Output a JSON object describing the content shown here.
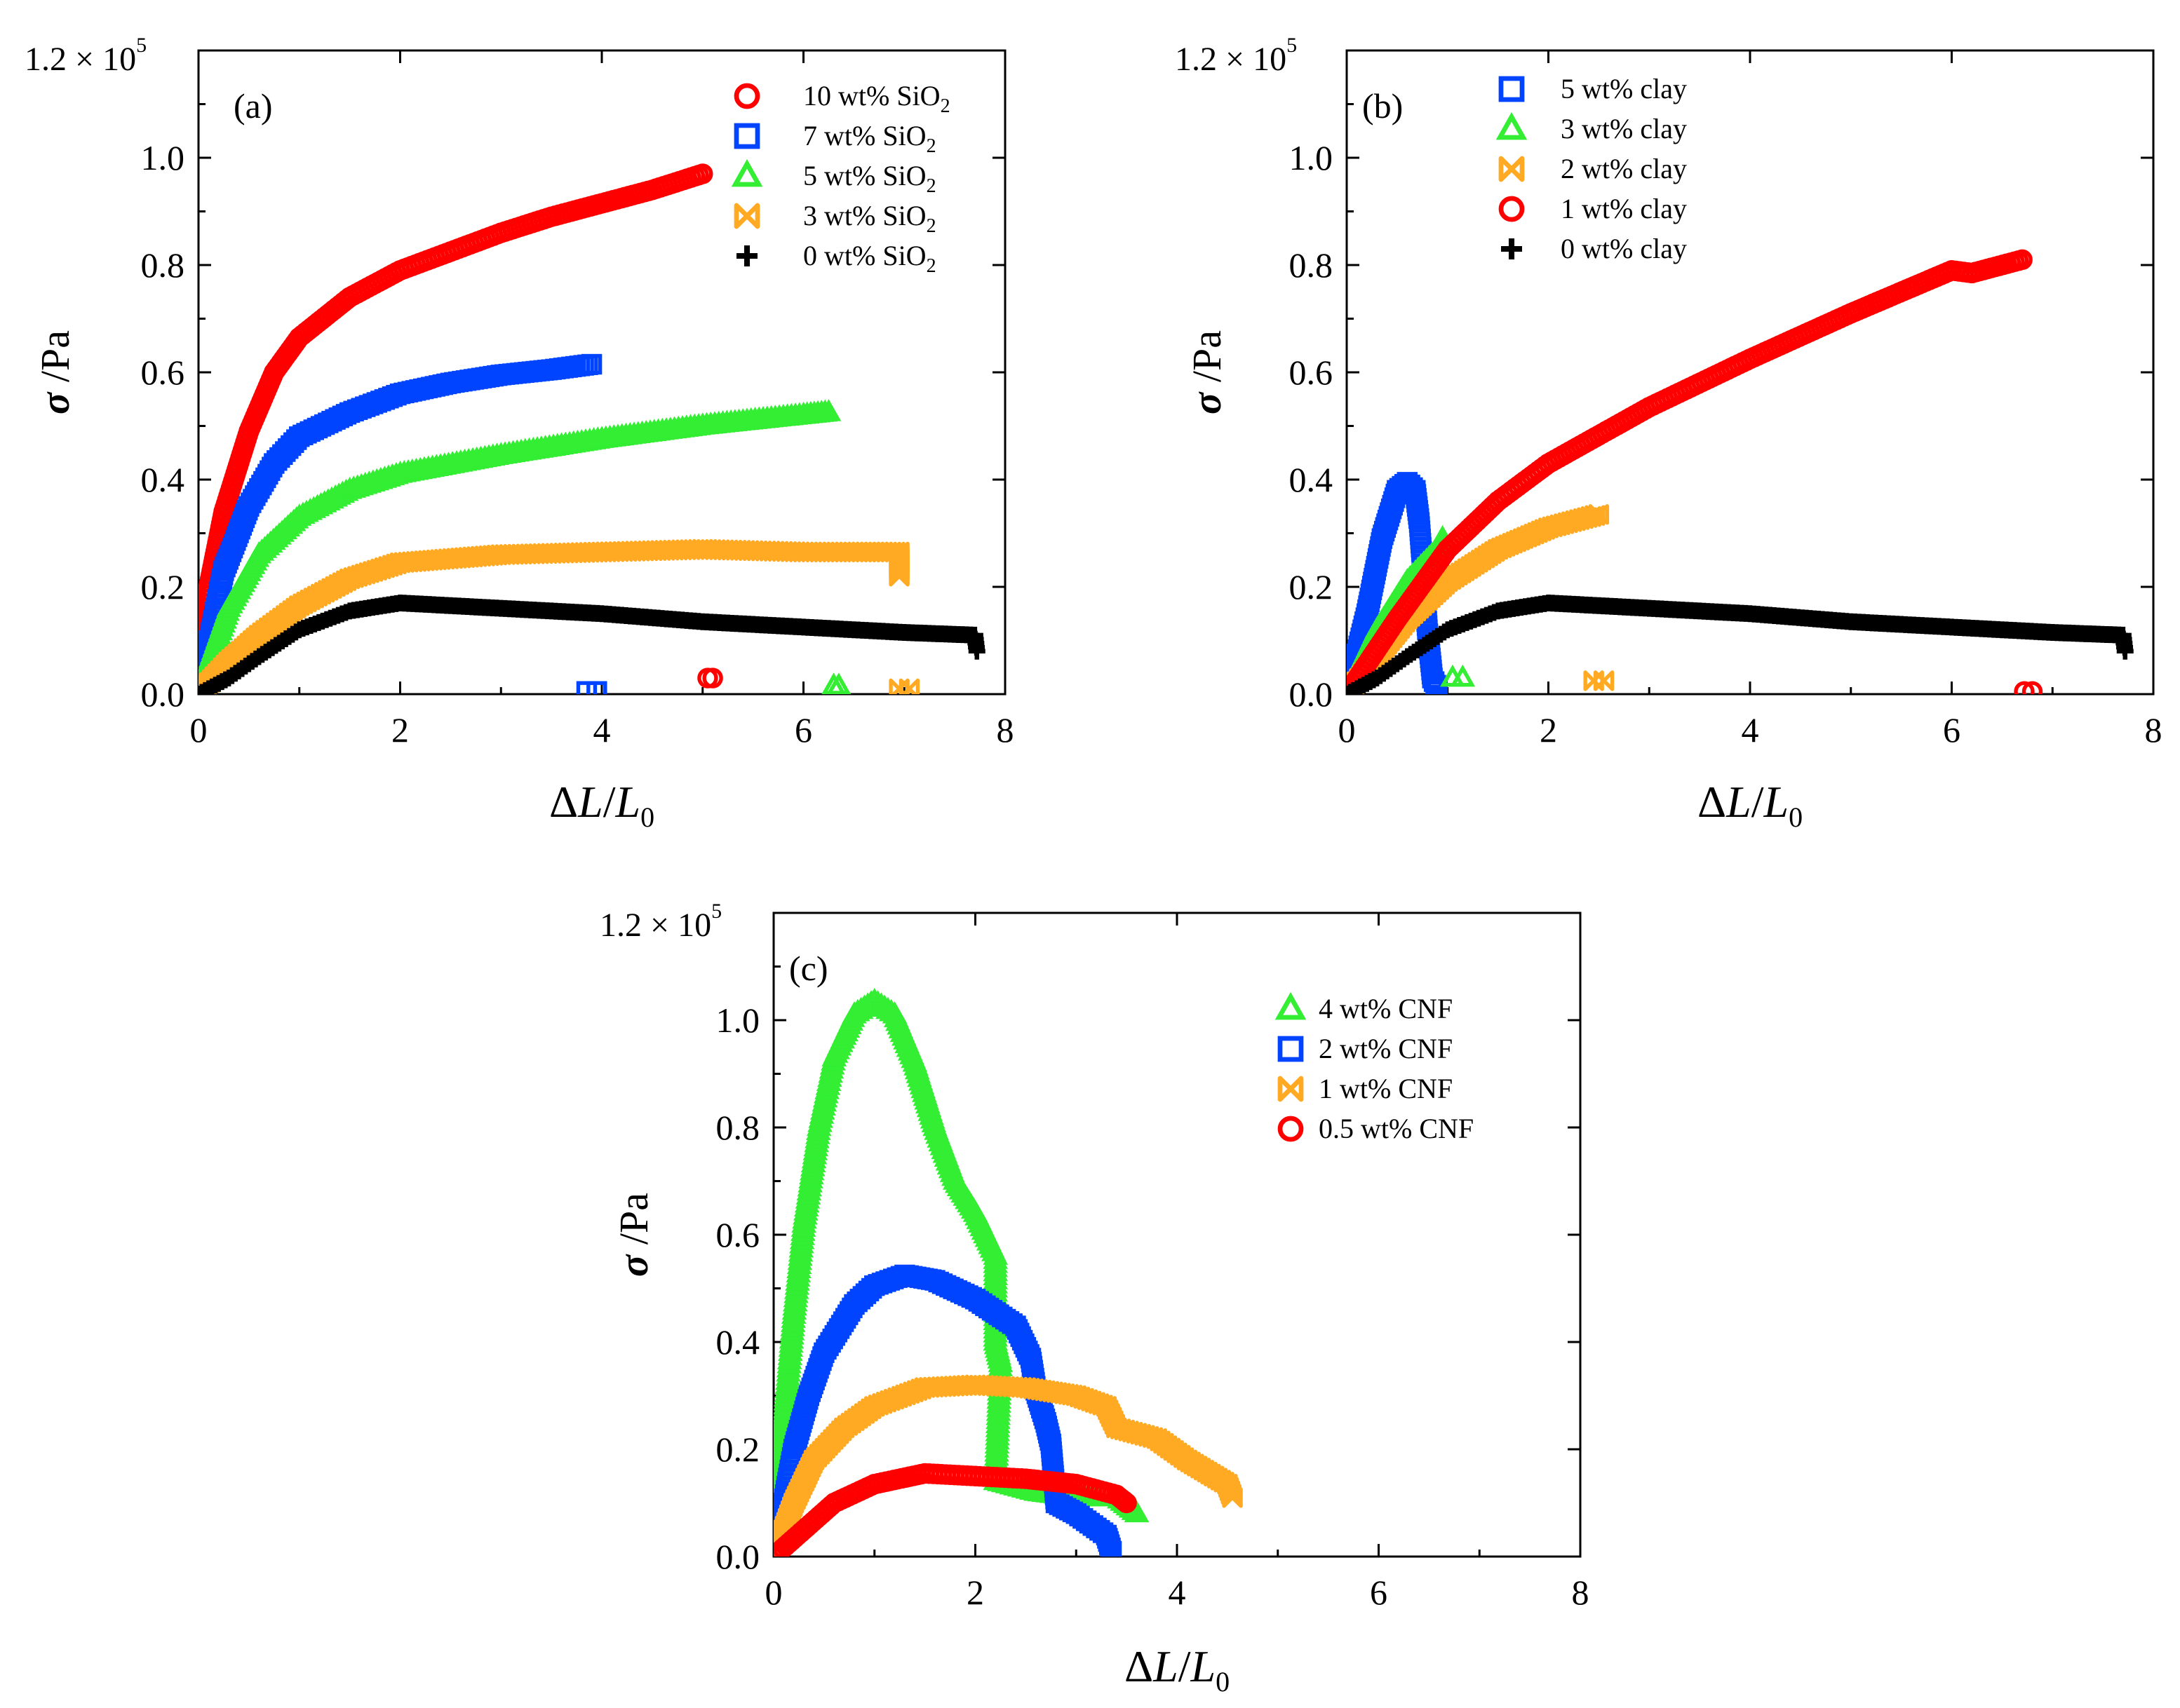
{
  "figure": {
    "panels": [
      {
        "tag": "(a)",
        "series_order": [
          "s10",
          "s7",
          "s5",
          "s3",
          "s0"
        ]
      },
      {
        "tag": "(b)",
        "series_order": [
          "c5",
          "c3",
          "c2",
          "c1",
          "c0"
        ]
      },
      {
        "tag": "(c)",
        "series_order": [
          "n4",
          "n2",
          "n1",
          "n05"
        ]
      }
    ]
  },
  "chart_data": [
    {
      "type": "scatter",
      "panel": "(a)",
      "title": "",
      "xlabel": "ΔL/L0",
      "ylabel": "σ /Pa",
      "xlim": [
        0,
        8
      ],
      "ylim": [
        0,
        120000
      ],
      "xticks": [
        0,
        2,
        4,
        6,
        8
      ],
      "yticks": [
        0.0,
        0.2,
        0.4,
        0.6,
        0.8,
        1.0
      ],
      "ytick_labels": [
        "0.0",
        "0.2",
        "0.4",
        "0.6",
        "0.8",
        "1.0"
      ],
      "ymax_label": "1.2 × 10",
      "ymax_exponent": "5",
      "legend_position": "top-right",
      "series": [
        {
          "id": "s10",
          "name": "10 wt% SiO",
          "name_sub": "2",
          "color": "#ff0000",
          "marker": "circle",
          "points": [
            [
              0,
              0
            ],
            [
              0.1,
              20000
            ],
            [
              0.25,
              34000
            ],
            [
              0.5,
              49000
            ],
            [
              0.75,
              60000
            ],
            [
              1.0,
              66500
            ],
            [
              1.5,
              74000
            ],
            [
              2.0,
              79000
            ],
            [
              2.5,
              82500
            ],
            [
              3.0,
              86000
            ],
            [
              3.5,
              89000
            ],
            [
              4.0,
              91500
            ],
            [
              4.5,
              94000
            ],
            [
              5.0,
              97000
            ]
          ],
          "break_points": [
            [
              5.05,
              3000
            ],
            [
              5.1,
              3000
            ]
          ]
        },
        {
          "id": "s7",
          "name": "7 wt% SiO",
          "name_sub": "2",
          "color": "#0044ff",
          "marker": "square",
          "points": [
            [
              0,
              0
            ],
            [
              0.25,
              23000
            ],
            [
              0.5,
              35000
            ],
            [
              0.75,
              43000
            ],
            [
              1.0,
              48000
            ],
            [
              1.5,
              52500
            ],
            [
              2.0,
              56000
            ],
            [
              2.5,
              58000
            ],
            [
              3.0,
              59500
            ],
            [
              3.5,
              60500
            ],
            [
              3.9,
              61500
            ]
          ],
          "break_points": [
            [
              3.85,
              500
            ],
            [
              3.95,
              500
            ]
          ]
        },
        {
          "id": "s5",
          "name": "5 wt% SiO",
          "name_sub": "2",
          "color": "#33ee33",
          "marker": "triangle",
          "points": [
            [
              0,
              0
            ],
            [
              0.3,
              16000
            ],
            [
              0.6,
              26000
            ],
            [
              1.0,
              33000
            ],
            [
              1.5,
              38000
            ],
            [
              2.0,
              41000
            ],
            [
              3.0,
              44500
            ],
            [
              4.0,
              47500
            ],
            [
              5.0,
              50000
            ],
            [
              6.0,
              52000
            ],
            [
              6.25,
              52500
            ]
          ],
          "break_points": [
            [
              6.3,
              1500
            ],
            [
              6.35,
              1500
            ]
          ]
        },
        {
          "id": "s3",
          "name": "3 wt% SiO",
          "name_sub": "2",
          "color": "#ffaa22",
          "marker": "bowtie",
          "points": [
            [
              0,
              0
            ],
            [
              0.3,
              6000
            ],
            [
              0.6,
              11000
            ],
            [
              1.0,
              16500
            ],
            [
              1.5,
              21500
            ],
            [
              2.0,
              24500
            ],
            [
              3.0,
              26000
            ],
            [
              4.0,
              26500
            ],
            [
              5.0,
              27000
            ],
            [
              6.0,
              26500
            ],
            [
              6.95,
              26500
            ],
            [
              6.95,
              22000
            ]
          ],
          "break_points": [
            [
              6.95,
              1000
            ],
            [
              7.05,
              1000
            ]
          ]
        },
        {
          "id": "s0",
          "name": "0 wt% SiO",
          "name_sub": "2",
          "color": "#000000",
          "marker": "plus",
          "points": [
            [
              0,
              0
            ],
            [
              0.3,
              3000
            ],
            [
              0.6,
              7000
            ],
            [
              1.0,
              12000
            ],
            [
              1.5,
              15500
            ],
            [
              2.0,
              17000
            ],
            [
              2.5,
              16500
            ],
            [
              3.0,
              16000
            ],
            [
              4.0,
              15000
            ],
            [
              5.0,
              13500
            ],
            [
              6.0,
              12500
            ],
            [
              7.0,
              11500
            ],
            [
              7.7,
              11000
            ],
            [
              7.72,
              8000
            ]
          ],
          "break_points": []
        }
      ]
    },
    {
      "type": "scatter",
      "panel": "(b)",
      "title": "",
      "xlabel": "ΔL/L0",
      "ylabel": "σ /Pa",
      "xlim": [
        0,
        8
      ],
      "ylim": [
        0,
        120000
      ],
      "xticks": [
        0,
        2,
        4,
        6,
        8
      ],
      "yticks": [
        0.0,
        0.2,
        0.4,
        0.6,
        0.8,
        1.0
      ],
      "ytick_labels": [
        "0.0",
        "0.2",
        "0.4",
        "0.6",
        "0.8",
        "1.0"
      ],
      "ymax_label": "1.2 × 10",
      "ymax_exponent": "5",
      "legend_position": "top-left",
      "series": [
        {
          "id": "c5",
          "name": "5 wt% clay",
          "name_sub": "",
          "color": "#0044ff",
          "marker": "square",
          "points": [
            [
              0,
              0
            ],
            [
              0.2,
              15000
            ],
            [
              0.35,
              29000
            ],
            [
              0.5,
              38000
            ],
            [
              0.6,
              39500
            ],
            [
              0.68,
              38000
            ],
            [
              0.72,
              32000
            ],
            [
              0.76,
              22000
            ],
            [
              0.8,
              12000
            ],
            [
              0.85,
              3000
            ],
            [
              0.9,
              1000
            ]
          ],
          "break_points": []
        },
        {
          "id": "c3",
          "name": "3 wt% clay",
          "name_sub": "",
          "color": "#33ee33",
          "marker": "triangle",
          "points": [
            [
              0,
              0
            ],
            [
              0.3,
              12000
            ],
            [
              0.6,
              21000
            ],
            [
              0.9,
              27000
            ],
            [
              0.95,
              29000
            ]
          ],
          "break_points": [
            [
              1.05,
              3000
            ],
            [
              1.15,
              3000
            ]
          ]
        },
        {
          "id": "c2",
          "name": "2 wt% clay",
          "name_sub": "",
          "color": "#ffaa22",
          "marker": "bowtie",
          "points": [
            [
              0,
              0
            ],
            [
              0.3,
              7000
            ],
            [
              0.6,
              14000
            ],
            [
              1.0,
              21000
            ],
            [
              1.5,
              27000
            ],
            [
              2.0,
              31000
            ],
            [
              2.5,
              33500
            ]
          ],
          "break_points": [
            [
              2.45,
              2500
            ],
            [
              2.55,
              2500
            ]
          ]
        },
        {
          "id": "c1",
          "name": "1 wt% clay",
          "name_sub": "",
          "color": "#ff0000",
          "marker": "circle",
          "points": [
            [
              0,
              0
            ],
            [
              0.5,
              14000
            ],
            [
              1.0,
              27000
            ],
            [
              1.5,
              36000
            ],
            [
              2.0,
              43000
            ],
            [
              3.0,
              53500
            ],
            [
              4.0,
              62500
            ],
            [
              5.0,
              71000
            ],
            [
              6.0,
              79000
            ],
            [
              6.2,
              78500
            ],
            [
              6.7,
              81000
            ]
          ],
          "break_points": [
            [
              6.72,
              500
            ],
            [
              6.8,
              500
            ]
          ]
        },
        {
          "id": "c0",
          "name": "0 wt% clay",
          "name_sub": "",
          "color": "#000000",
          "marker": "plus",
          "points": [
            [
              0,
              0
            ],
            [
              0.3,
              3000
            ],
            [
              0.6,
              7000
            ],
            [
              1.0,
              12000
            ],
            [
              1.5,
              15500
            ],
            [
              2.0,
              17000
            ],
            [
              2.5,
              16500
            ],
            [
              3.0,
              16000
            ],
            [
              4.0,
              15000
            ],
            [
              5.0,
              13500
            ],
            [
              6.0,
              12500
            ],
            [
              7.0,
              11500
            ],
            [
              7.7,
              11000
            ],
            [
              7.72,
              8000
            ]
          ],
          "break_points": []
        }
      ]
    },
    {
      "type": "scatter",
      "panel": "(c)",
      "title": "",
      "xlabel": "ΔL/L0",
      "ylabel": "σ /Pa",
      "xlim": [
        0,
        8
      ],
      "ylim": [
        0,
        120000
      ],
      "xticks": [
        0,
        2,
        4,
        6,
        8
      ],
      "yticks": [
        0.0,
        0.2,
        0.4,
        0.6,
        0.8,
        1.0
      ],
      "ytick_labels": [
        "0.0",
        "0.2",
        "0.4",
        "0.6",
        "0.8",
        "1.0"
      ],
      "ymax_label": "1.2 × 10",
      "ymax_exponent": "5",
      "legend_position": "top-right",
      "series": [
        {
          "id": "n4",
          "name": "4 wt% CNF",
          "name_sub": "",
          "color": "#33ee33",
          "marker": "triangle",
          "points": [
            [
              0,
              0
            ],
            [
              0.05,
              10000
            ],
            [
              0.1,
              25000
            ],
            [
              0.2,
              45000
            ],
            [
              0.3,
              62000
            ],
            [
              0.45,
              80000
            ],
            [
              0.6,
              93000
            ],
            [
              0.8,
              101000
            ],
            [
              1.0,
              103500
            ],
            [
              1.2,
              101000
            ],
            [
              1.4,
              92000
            ],
            [
              1.6,
              80000
            ],
            [
              1.8,
              70000
            ],
            [
              2.0,
              64000
            ],
            [
              2.2,
              56000
            ],
            [
              2.2,
              40000
            ],
            [
              2.25,
              36000
            ],
            [
              2.2,
              14000
            ],
            [
              2.6,
              12000
            ],
            [
              3.0,
              11000
            ],
            [
              3.4,
              11000
            ],
            [
              3.6,
              8000
            ]
          ],
          "break_points": []
        },
        {
          "id": "n2",
          "name": "2 wt% CNF",
          "name_sub": "",
          "color": "#0044ff",
          "marker": "square",
          "points": [
            [
              0,
              0
            ],
            [
              0.1,
              10000
            ],
            [
              0.2,
              20000
            ],
            [
              0.35,
              30000
            ],
            [
              0.5,
              38000
            ],
            [
              0.8,
              47000
            ],
            [
              1.0,
              50500
            ],
            [
              1.3,
              52500
            ],
            [
              1.6,
              51500
            ],
            [
              2.0,
              48000
            ],
            [
              2.4,
              43000
            ],
            [
              2.55,
              37000
            ],
            [
              2.6,
              31000
            ],
            [
              2.7,
              25000
            ],
            [
              2.75,
              21000
            ],
            [
              2.8,
              10000
            ],
            [
              3.0,
              8000
            ],
            [
              3.3,
              4000
            ],
            [
              3.35,
              1000
            ]
          ],
          "break_points": []
        },
        {
          "id": "n1",
          "name": "1 wt% CNF",
          "name_sub": "",
          "color": "#ffaa22",
          "marker": "bowtie",
          "points": [
            [
              0,
              0
            ],
            [
              0.2,
              10000
            ],
            [
              0.4,
              18000
            ],
            [
              0.7,
              24000
            ],
            [
              1.0,
              28000
            ],
            [
              1.5,
              31500
            ],
            [
              2.0,
              32000
            ],
            [
              2.5,
              31500
            ],
            [
              3.0,
              30000
            ],
            [
              3.3,
              28000
            ],
            [
              3.4,
              24000
            ],
            [
              3.8,
              22000
            ],
            [
              4.1,
              18000
            ],
            [
              4.5,
              13500
            ],
            [
              4.55,
              11000
            ]
          ],
          "break_points": []
        },
        {
          "id": "n05",
          "name": "0.5 wt% CNF",
          "name_sub": "",
          "color": "#ff0000",
          "marker": "circle",
          "points": [
            [
              0,
              0
            ],
            [
              0.3,
              5000
            ],
            [
              0.6,
              10000
            ],
            [
              1.0,
              13500
            ],
            [
              1.5,
              15500
            ],
            [
              2.0,
              15000
            ],
            [
              2.5,
              14500
            ],
            [
              3.0,
              13500
            ],
            [
              3.4,
              11500
            ],
            [
              3.5,
              10000
            ]
          ],
          "break_points": []
        }
      ]
    }
  ]
}
